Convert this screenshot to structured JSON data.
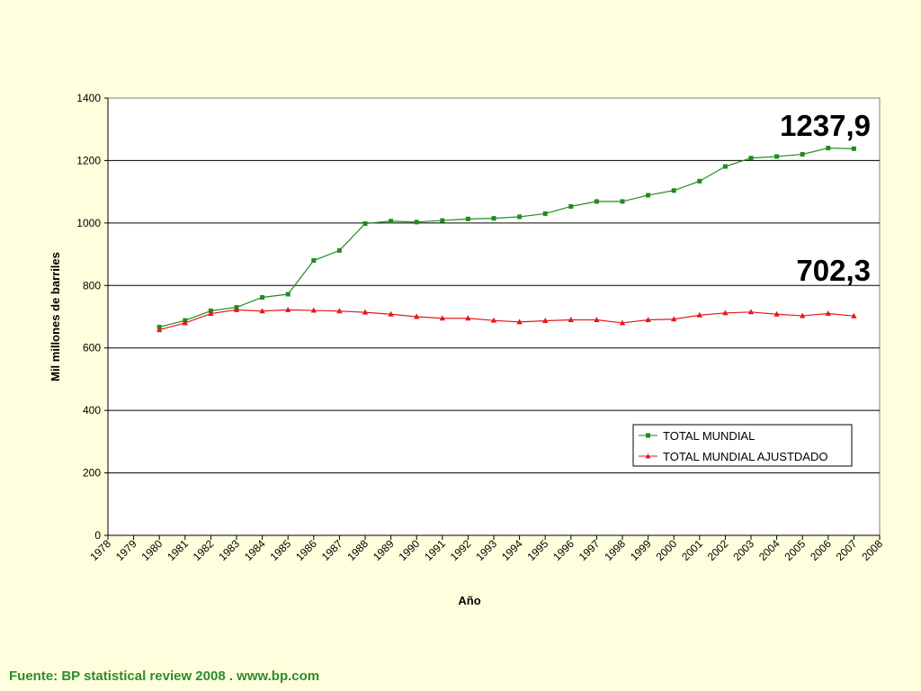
{
  "chart_data": {
    "type": "line",
    "xlabel": "Año",
    "ylabel": "Mil millones de barriles",
    "x_ticks": [
      1978,
      1979,
      1980,
      1981,
      1982,
      1983,
      1984,
      1985,
      1986,
      1987,
      1988,
      1989,
      1990,
      1991,
      1992,
      1993,
      1994,
      1995,
      1996,
      1997,
      1998,
      1999,
      2000,
      2001,
      2002,
      2003,
      2004,
      2005,
      2006,
      2007,
      2008
    ],
    "xlim": [
      1978,
      2008
    ],
    "ylim": [
      0,
      1400
    ],
    "y_ticks": [
      0,
      200,
      400,
      600,
      800,
      1000,
      1200,
      1400
    ],
    "grid": "horizontal",
    "legend_position": "bottom-right",
    "series": [
      {
        "name": "TOTAL MUNDIAL",
        "color": "#1E8C1E",
        "marker": "square",
        "x": [
          1980,
          1981,
          1982,
          1983,
          1984,
          1985,
          1986,
          1987,
          1988,
          1989,
          1990,
          1991,
          1992,
          1993,
          1994,
          1995,
          1996,
          1997,
          1998,
          1999,
          2000,
          2001,
          2002,
          2003,
          2004,
          2005,
          2006,
          2007
        ],
        "values": [
          667,
          688,
          719,
          730,
          762,
          772,
          880,
          912,
          998,
          1006,
          1003,
          1008,
          1013,
          1015,
          1020,
          1030,
          1053,
          1069,
          1069,
          1089,
          1104,
          1134,
          1181,
          1208,
          1213,
          1220,
          1240,
          1237.9
        ]
      },
      {
        "name": "TOTAL MUNDIAL AJUSTDADO",
        "color": "#E41A1A",
        "marker": "triangle",
        "x": [
          1980,
          1981,
          1982,
          1983,
          1984,
          1985,
          1986,
          1987,
          1988,
          1989,
          1990,
          1991,
          1992,
          1993,
          1994,
          1995,
          1996,
          1997,
          1998,
          1999,
          2000,
          2001,
          2002,
          2003,
          2004,
          2005,
          2006,
          2007
        ],
        "values": [
          658,
          680,
          710,
          722,
          718,
          722,
          720,
          718,
          714,
          708,
          700,
          695,
          695,
          688,
          683,
          687,
          690,
          690,
          680,
          690,
          692,
          705,
          712,
          715,
          708,
          703,
          710,
          702.3
        ]
      }
    ],
    "annotations": [
      "1237,9",
      "702,3"
    ]
  },
  "footer": {
    "source": "Fuente: BP statistical review 2008 . www.bp.com"
  }
}
